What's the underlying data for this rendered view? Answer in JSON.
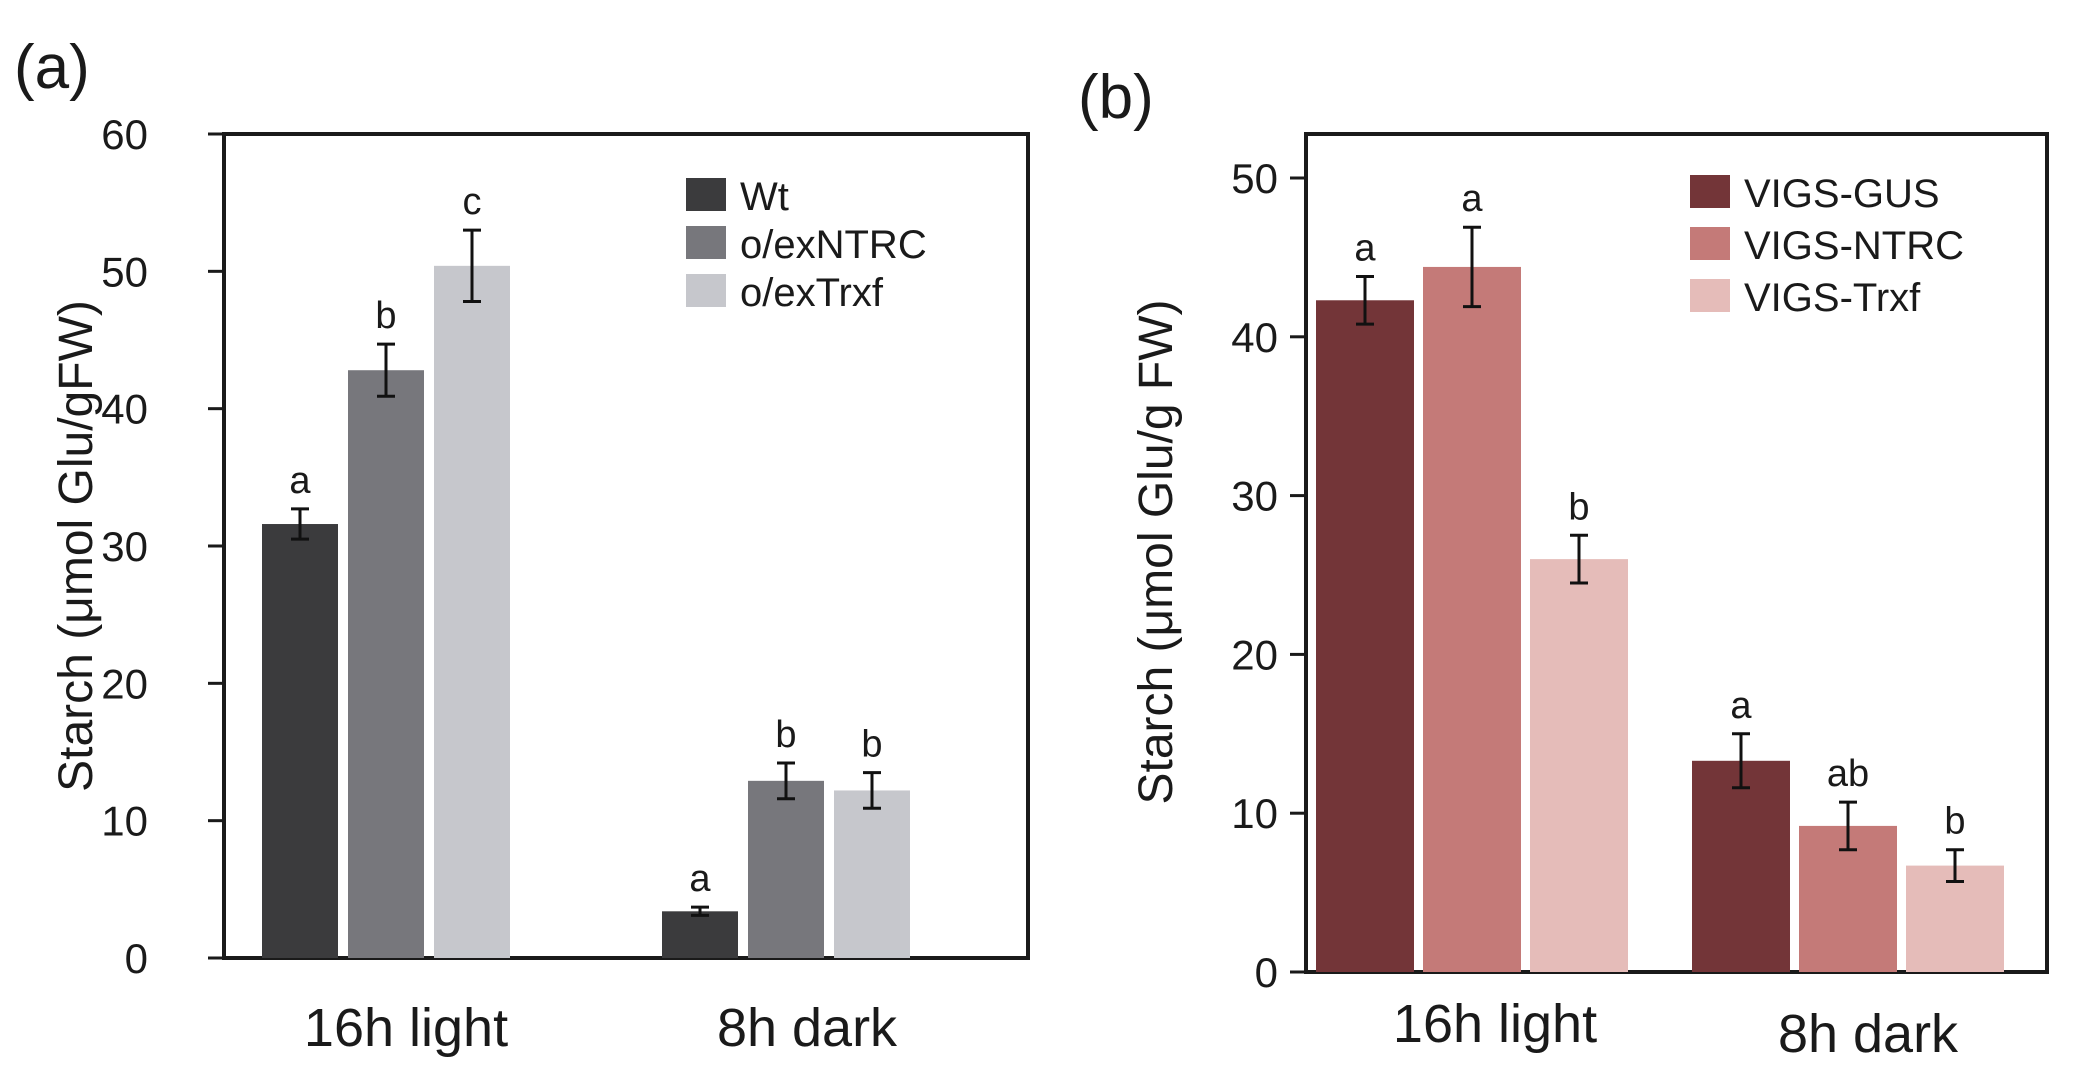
{
  "chart_data": [
    {
      "panel": "(a)",
      "type": "bar",
      "xlabel": "",
      "ylabel": "Starch (μmol Glu/gFW)",
      "ylim": [
        0,
        60
      ],
      "yticks": [
        0,
        10,
        20,
        30,
        40,
        50,
        60
      ],
      "categories": [
        "16h light",
        "8h dark"
      ],
      "legend_position": "top-right",
      "grid": false,
      "series": [
        {
          "name": "Wt",
          "color": "#3b3b3d",
          "values": [
            31.6,
            3.4
          ],
          "errors": [
            1.1,
            0.3
          ],
          "letters": [
            "a",
            "a"
          ]
        },
        {
          "name": "o/exNTRC",
          "color": "#77777c",
          "values": [
            42.8,
            12.9
          ],
          "errors": [
            1.9,
            1.3
          ],
          "letters": [
            "b",
            "b"
          ]
        },
        {
          "name": "o/exTrxf",
          "color": "#c6c7cc",
          "values": [
            50.4,
            12.2
          ],
          "errors": [
            2.6,
            1.3
          ],
          "letters": [
            "c",
            "b"
          ]
        }
      ]
    },
    {
      "panel": "(b)",
      "type": "bar",
      "xlabel": "",
      "ylabel": "Starch (μmol Glu/g FW)",
      "ylim": [
        0,
        50
      ],
      "yticks": [
        0,
        10,
        20,
        30,
        40,
        50
      ],
      "categories": [
        "16h light",
        "8h dark"
      ],
      "legend_position": "top-right",
      "grid": false,
      "series": [
        {
          "name": "VIGS-GUS",
          "color": "#733538",
          "values": [
            42.3,
            13.3
          ],
          "errors": [
            1.5,
            1.7
          ],
          "letters": [
            "a",
            "a"
          ]
        },
        {
          "name": "VIGS-NTRC",
          "color": "#c47a78",
          "values": [
            44.4,
            9.2
          ],
          "errors": [
            2.5,
            1.5
          ],
          "letters": [
            "a",
            "ab"
          ]
        },
        {
          "name": "VIGS-Trxf",
          "color": "#e5bcb9",
          "values": [
            26.0,
            6.7
          ],
          "errors": [
            1.5,
            1.0
          ],
          "letters": [
            "b",
            "b"
          ]
        }
      ]
    }
  ]
}
